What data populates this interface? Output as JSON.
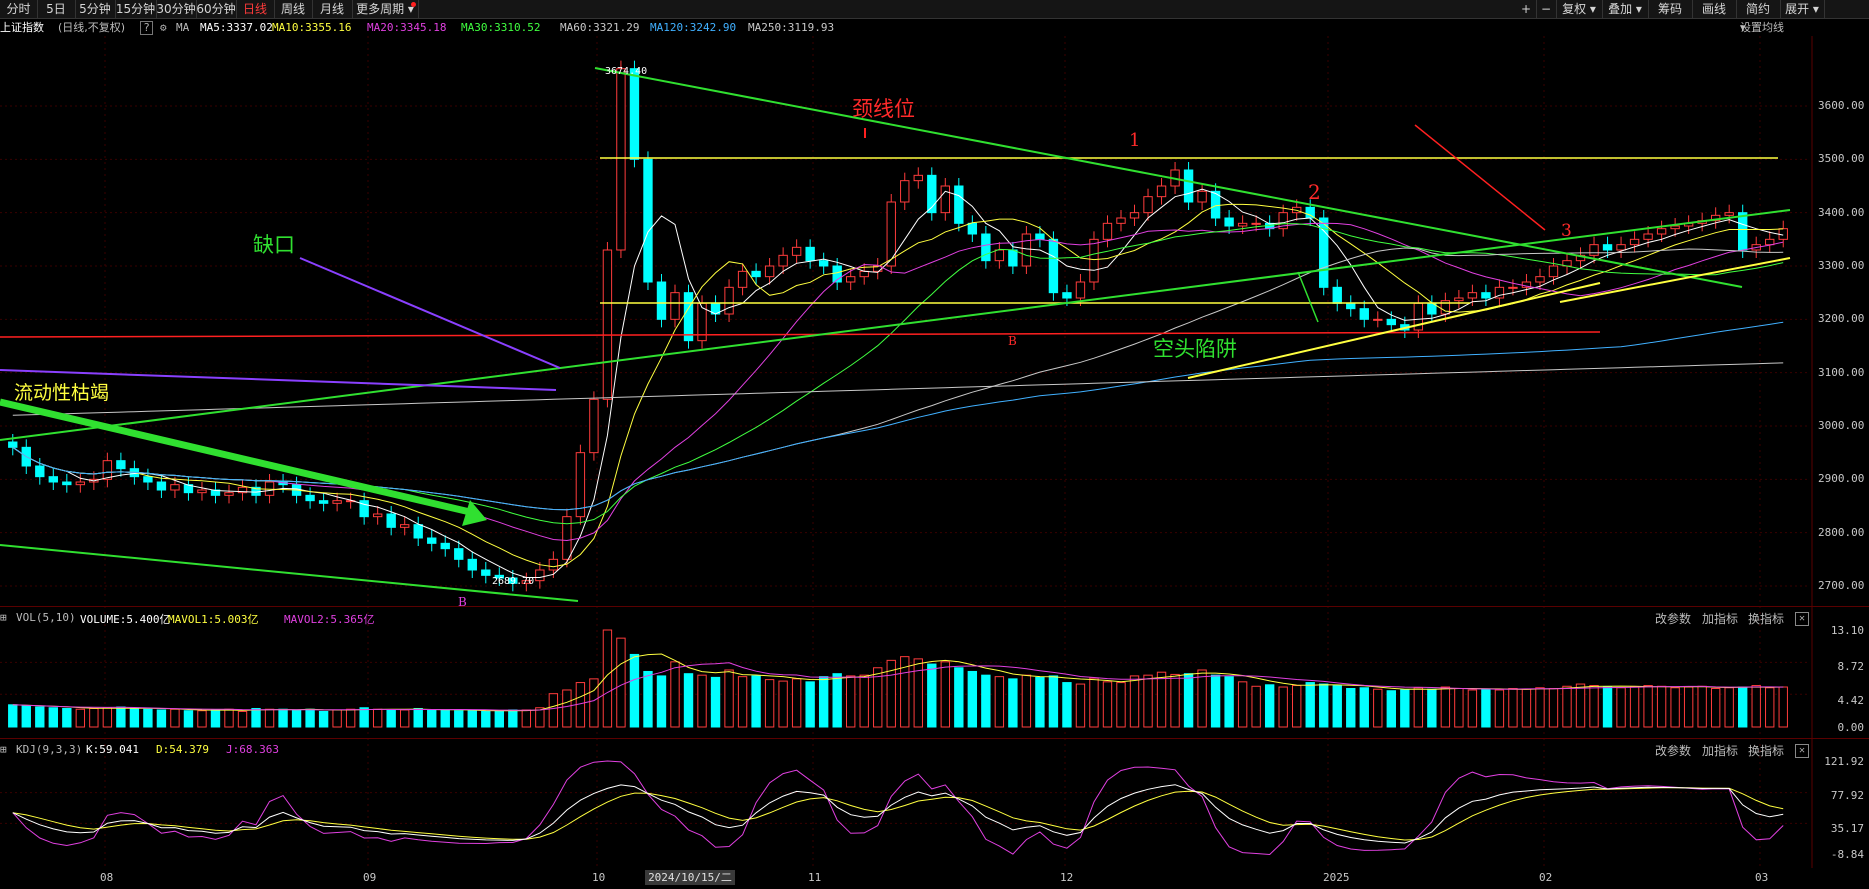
{
  "toolbar": {
    "left_tabs": [
      "分时",
      "5日",
      "5分钟",
      "15分钟",
      "30分钟",
      "60分钟",
      "日线",
      "周线",
      "月线",
      "更多周期"
    ],
    "active_tab": "日线",
    "right_buttons": [
      "+",
      "−",
      "复权",
      "叠加",
      "筹码",
      "画线",
      "简约",
      "展开"
    ]
  },
  "main_indicator": {
    "symbol": "上证指数",
    "mode": "(日线,不复权)",
    "help": "?",
    "ma_label": "MA",
    "ma_values": [
      {
        "text": "MA5:3337.02",
        "color": "#ffffff"
      },
      {
        "text": "MA10:3355.16",
        "color": "#ffff40"
      },
      {
        "text": "MA20:3345.18",
        "color": "#e040e0"
      },
      {
        "text": "MA30:3310.52",
        "color": "#40ff40"
      },
      {
        "text": "MA60:3321.29",
        "color": "#c8c8c8"
      },
      {
        "text": "MA120:3242.90",
        "color": "#40b0ff"
      },
      {
        "text": "MA250:3119.93",
        "color": "#c8c8c8"
      }
    ],
    "settings": "设置均线"
  },
  "volume_panel": {
    "title": "VOL(5,10)",
    "volume": "VOLUME:5.400亿",
    "mavol1": "MAVOL1:5.003亿",
    "mavol2": "MAVOL2:5.365亿",
    "buttons": [
      "改参数",
      "加指标",
      "换指标"
    ]
  },
  "kdj_panel": {
    "title": "KDJ(9,3,3)",
    "k": "K:59.041",
    "d": "D:54.379",
    "j": "J:68.363",
    "buttons": [
      "改参数",
      "加指标",
      "换指标"
    ]
  },
  "price_axis": [
    "3600.00",
    "3500.00",
    "3400.00",
    "3300.00",
    "3200.00",
    "3100.00",
    "3000.00",
    "2900.00",
    "2800.00",
    "2700.00"
  ],
  "volume_axis": [
    "13.10",
    "8.72",
    "4.42",
    "0.00"
  ],
  "kdj_axis": [
    "121.92",
    "77.92",
    "35.17",
    "-8.84"
  ],
  "time_axis": [
    "08",
    "09",
    "10",
    "11",
    "12",
    "2025",
    "02",
    "03"
  ],
  "crosshair_date": "2024/10/15/二",
  "price_labels": {
    "high": "3674.40",
    "low": "2689.70"
  },
  "annotations": {
    "neckline": "颈线位",
    "gap": "缺口",
    "liquidity": "流动性枯竭",
    "bear_trap": "空头陷阱",
    "num1": "1",
    "num2": "2",
    "num3": "3",
    "b1": "B",
    "b2": "B"
  },
  "colors": {
    "up": "#ff3c3c",
    "down": "#00ffff",
    "grid": "#3a0000",
    "yellow": "#ffff40",
    "green": "#30e030",
    "red_line": "#ff2020",
    "purple": "#8a40ff"
  },
  "chart_data": {
    "type": "candlestick",
    "title": "上证指数",
    "ylim": [
      2660,
      3700
    ],
    "high": 3674.4,
    "low": 2689.7,
    "ma": {
      "MA5": 3337.02,
      "MA10": 3355.16,
      "MA20": 3345.18,
      "MA30": 3310.52,
      "MA60": 3321.29,
      "MA120": 3242.9,
      "MA250": 3119.93
    },
    "volume_last_yi": 5.4,
    "kdj_last": {
      "K": 59.041,
      "D": 54.379,
      "J": 68.363
    },
    "closes": [
      2960,
      2925,
      2905,
      2895,
      2890,
      2895,
      2900,
      2935,
      2920,
      2905,
      2895,
      2880,
      2890,
      2875,
      2880,
      2870,
      2875,
      2885,
      2870,
      2895,
      2890,
      2870,
      2860,
      2855,
      2860,
      2860,
      2830,
      2835,
      2810,
      2815,
      2790,
      2780,
      2770,
      2750,
      2730,
      2720,
      2715,
      2705,
      2710,
      2730,
      2750,
      2830,
      2950,
      3050,
      3330,
      3670,
      3500,
      3270,
      3200,
      3250,
      3160,
      3230,
      3210,
      3260,
      3290,
      3280,
      3300,
      3320,
      3335,
      3310,
      3300,
      3270,
      3280,
      3290,
      3300,
      3420,
      3460,
      3470,
      3400,
      3450,
      3380,
      3360,
      3310,
      3330,
      3300,
      3360,
      3350,
      3250,
      3240,
      3270,
      3350,
      3380,
      3390,
      3400,
      3430,
      3450,
      3480,
      3420,
      3440,
      3390,
      3375,
      3380,
      3380,
      3370,
      3400,
      3410,
      3390,
      3260,
      3230,
      3220,
      3200,
      3200,
      3190,
      3180,
      3230,
      3210,
      3235,
      3240,
      3250,
      3240,
      3260,
      3260,
      3270,
      3280,
      3300,
      3310,
      3320,
      3340,
      3330,
      3340,
      3350,
      3360,
      3370,
      3375,
      3380,
      3385,
      3395,
      3400,
      3330,
      3340,
      3350,
      3370
    ],
    "volumes": [
      3.0,
      2.9,
      2.7,
      2.6,
      2.5,
      2.4,
      2.5,
      2.6,
      2.7,
      2.5,
      2.4,
      2.3,
      2.4,
      2.2,
      2.2,
      2.3,
      2.4,
      2.1,
      2.5,
      2.4,
      2.4,
      2.3,
      2.4,
      2.1,
      2.3,
      2.4,
      2.6,
      2.4,
      2.3,
      2.3,
      2.5,
      2.3,
      2.3,
      2.2,
      2.2,
      2.1,
      2.2,
      2.3,
      2.3,
      2.6,
      4.5,
      5.0,
      6.0,
      6.5,
      13.1,
      12.0,
      9.8,
      7.5,
      6.9,
      8.8,
      7.2,
      7.0,
      6.7,
      7.7,
      6.8,
      6.9,
      6.4,
      6.2,
      6.5,
      6.1,
      6.8,
      7.2,
      6.9,
      7.0,
      8.0,
      9.0,
      9.5,
      9.2,
      8.5,
      8.8,
      8.0,
      7.5,
      7.0,
      6.8,
      6.5,
      7.0,
      6.7,
      6.9,
      6.0,
      5.8,
      6.6,
      6.1,
      6.0,
      6.9,
      7.0,
      7.4,
      7.1,
      7.2,
      7.7,
      7.0,
      6.8,
      6.1,
      5.5,
      5.7,
      5.4,
      5.6,
      6.0,
      5.8,
      5.6,
      5.2,
      5.3,
      5.1,
      4.9,
      5.0,
      5.3,
      5.1,
      5.4,
      5.2,
      5.0,
      5.1,
      5.0,
      5.2,
      5.1,
      5.3,
      5.2,
      5.5,
      5.8,
      5.6,
      5.4,
      5.3,
      5.4,
      5.6,
      5.5,
      5.3,
      5.4,
      5.5,
      5.2,
      5.3,
      5.4,
      5.6,
      5.3,
      5.4
    ]
  }
}
